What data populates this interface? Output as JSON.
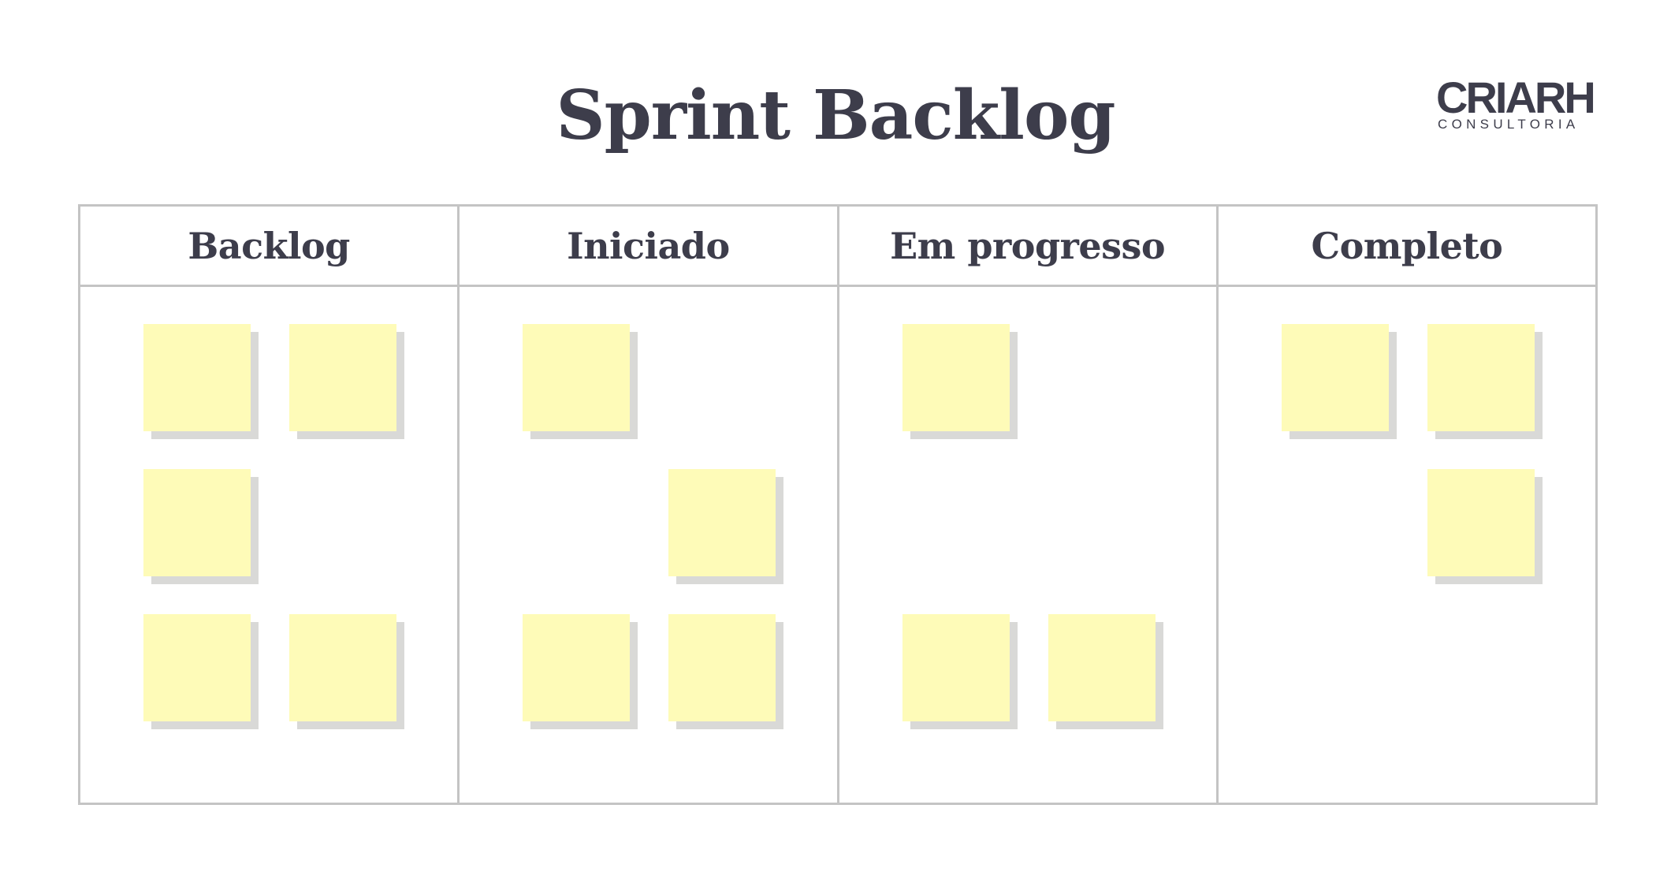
{
  "title": "Sprint Backlog",
  "logo": {
    "name": "CRIARH",
    "tagline": "CONSULTORIA"
  },
  "colors": {
    "text": "#3d3d4b",
    "border": "#c4c4c4",
    "sticky_note": "#fefbb8",
    "sticky_shadow": "#d9d9d7"
  },
  "columns": [
    {
      "label": "Backlog",
      "note_count": 5
    },
    {
      "label": "Iniciado",
      "note_count": 4
    },
    {
      "label": "Em progresso",
      "note_count": 3
    },
    {
      "label": "Completo",
      "note_count": 3
    }
  ]
}
